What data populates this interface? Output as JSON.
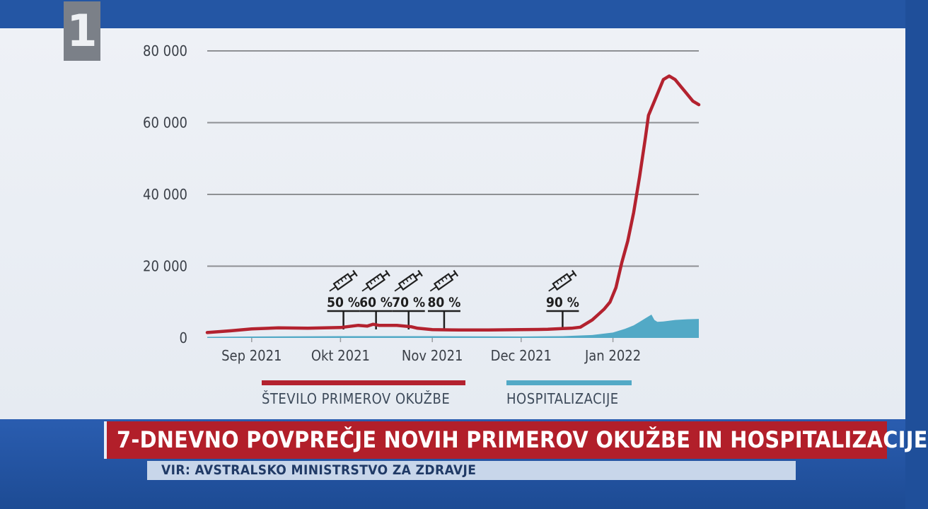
{
  "chart_data": {
    "type": "line",
    "title": "",
    "xlabel": "",
    "ylabel": "",
    "ylim": [
      0,
      80000
    ],
    "yticks": [
      0,
      20000,
      40000,
      60000,
      80000
    ],
    "ytick_labels": [
      "0",
      "20 000",
      "40 000",
      "60 000",
      "80 000"
    ],
    "xlim": [
      "2021-08-17",
      "2022-01-30"
    ],
    "xticks": [
      "2021-09-01",
      "2021-10-01",
      "2021-11-01",
      "2021-12-01",
      "2022-01-01"
    ],
    "xtick_labels": [
      "Sep 2021",
      "Okt 2021",
      "Nov 2021",
      "Dec 2021",
      "Jan 2022"
    ],
    "grid": true,
    "legend_position": "bottom",
    "series": [
      {
        "name": "ŠTEVILO PRIMEROV OKUŽBE",
        "type": "line",
        "color": "#b3222f",
        "x": [
          "2021-08-17",
          "2021-08-25",
          "2021-09-01",
          "2021-09-10",
          "2021-09-20",
          "2021-10-01",
          "2021-10-07",
          "2021-10-10",
          "2021-10-12",
          "2021-10-14",
          "2021-10-20",
          "2021-10-25",
          "2021-10-27",
          "2021-11-01",
          "2021-11-10",
          "2021-11-20",
          "2021-12-01",
          "2021-12-10",
          "2021-12-15",
          "2021-12-18",
          "2021-12-21",
          "2021-12-23",
          "2021-12-25",
          "2021-12-27",
          "2021-12-29",
          "2021-12-31",
          "2022-01-02",
          "2022-01-04",
          "2022-01-06",
          "2022-01-08",
          "2022-01-10",
          "2022-01-12",
          "2022-01-13",
          "2022-01-15",
          "2022-01-17",
          "2022-01-18",
          "2022-01-20",
          "2022-01-22",
          "2022-01-24",
          "2022-01-26",
          "2022-01-28",
          "2022-01-30"
        ],
        "values": [
          1500,
          2000,
          2500,
          2800,
          2700,
          2900,
          3500,
          3300,
          3800,
          3500,
          3500,
          3100,
          2700,
          2300,
          2200,
          2200,
          2300,
          2400,
          2600,
          2700,
          3000,
          4000,
          5000,
          6500,
          8000,
          10000,
          14000,
          21000,
          27000,
          35000,
          45000,
          56000,
          62000,
          66000,
          70000,
          72000,
          73000,
          72000,
          70000,
          68000,
          66000,
          65000
        ]
      },
      {
        "name": "HOSPITALIZACIJE",
        "type": "area",
        "color": "#52a9c6",
        "x": [
          "2021-08-17",
          "2021-09-01",
          "2021-10-01",
          "2021-11-01",
          "2021-12-01",
          "2021-12-15",
          "2021-12-25",
          "2022-01-01",
          "2022-01-05",
          "2022-01-08",
          "2022-01-10",
          "2022-01-12",
          "2022-01-14",
          "2022-01-15",
          "2022-01-16",
          "2022-01-18",
          "2022-01-22",
          "2022-01-26",
          "2022-01-30"
        ],
        "values": [
          300,
          400,
          500,
          500,
          400,
          500,
          800,
          1500,
          2500,
          3500,
          4500,
          5500,
          6500,
          5000,
          4500,
          4600,
          5000,
          5200,
          5300
        ]
      }
    ],
    "annotations": [
      {
        "x": "2021-10-02",
        "label": "50 %"
      },
      {
        "x": "2021-10-13",
        "label": "60 %"
      },
      {
        "x": "2021-10-24",
        "label": "70 %"
      },
      {
        "x": "2021-11-05",
        "label": "80 %"
      },
      {
        "x": "2021-12-15",
        "label": "90 %"
      }
    ]
  },
  "logo": {
    "number": "1"
  },
  "headline": "7-DNEVNO POVPREČJE NOVIH PRIMEROV OKUŽBE IN HOSPITALIZACIJE",
  "source": "VIR: AVSTRALSKO MINISTRSTVO ZA ZDRAVJE",
  "icons": {
    "annotation": "syringe-icon"
  }
}
